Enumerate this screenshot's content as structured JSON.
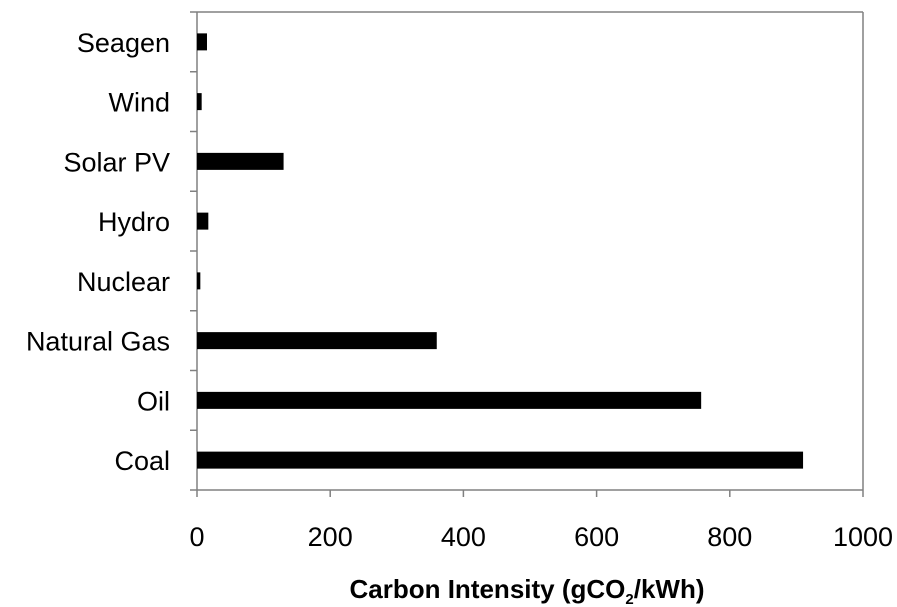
{
  "chart_data": {
    "type": "bar",
    "orientation": "horizontal",
    "categories": [
      "Seagen",
      "Wind",
      "Solar PV",
      "Hydro",
      "Nuclear",
      "Natural Gas",
      "Oil",
      "Coal"
    ],
    "values": [
      15,
      7,
      130,
      17,
      5,
      360,
      757,
      910
    ],
    "xlabel": {
      "prefix": "Carbon Intensity (gCO",
      "subscript": "2",
      "suffix": "/kWh)"
    },
    "xlim": [
      0,
      1000
    ],
    "xticks": [
      "0",
      "200",
      "400",
      "600",
      "800",
      "1000"
    ],
    "xtick_values": [
      0,
      200,
      400,
      600,
      800,
      1000
    ],
    "grid": false,
    "bar_color": "#000000",
    "axis_color": "#808080"
  }
}
